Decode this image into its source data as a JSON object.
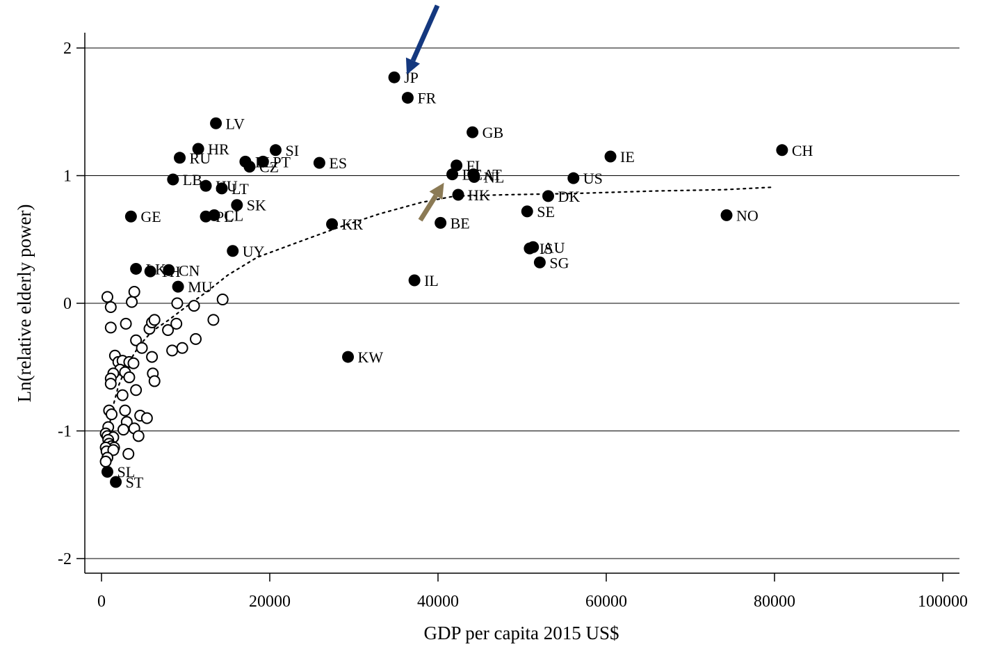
{
  "chart_data": {
    "type": "scatter",
    "xlabel": "GDP per capita 2015 US$",
    "ylabel": "Ln(relative elderly power)",
    "xlim": [
      -1500,
      101500
    ],
    "ylim": [
      -2.1,
      2.1
    ],
    "xticks": [
      0,
      20000,
      40000,
      60000,
      80000,
      100000
    ],
    "yticks": [
      -2,
      -1,
      0,
      1,
      2
    ],
    "grid": "horizontal",
    "colors": {
      "text": "#000000",
      "grid": "#000000",
      "arrow_blue": "#14387f",
      "arrow_tan": "#8b7a55"
    },
    "labeled_points": [
      {
        "label": "JP",
        "x": 34800,
        "y": 1.77
      },
      {
        "label": "FR",
        "x": 36400,
        "y": 1.61
      },
      {
        "label": "GB",
        "x": 44100,
        "y": 1.34
      },
      {
        "label": "CH",
        "x": 80900,
        "y": 1.2
      },
      {
        "label": "IE",
        "x": 60500,
        "y": 1.15
      },
      {
        "label": "LV",
        "x": 13600,
        "y": 1.41
      },
      {
        "label": "HR",
        "x": 11500,
        "y": 1.21
      },
      {
        "label": "RU",
        "x": 9300,
        "y": 1.14
      },
      {
        "label": "SI",
        "x": 20700,
        "y": 1.2
      },
      {
        "label": "PT",
        "x": 19200,
        "y": 1.11
      },
      {
        "label": "EL",
        "x": 17100,
        "y": 1.11
      },
      {
        "label": "CZ",
        "x": 17600,
        "y": 1.07
      },
      {
        "label": "ES",
        "x": 25900,
        "y": 1.1
      },
      {
        "label": "FI",
        "x": 42200,
        "y": 1.08
      },
      {
        "label": "DE",
        "x": 41700,
        "y": 1.01
      },
      {
        "label": "AT",
        "x": 44200,
        "y": 1.01
      },
      {
        "label": "NL",
        "x": 44300,
        "y": 0.99
      },
      {
        "label": "US",
        "x": 56100,
        "y": 0.98
      },
      {
        "label": "LB",
        "x": 8500,
        "y": 0.97
      },
      {
        "label": "HU",
        "x": 12400,
        "y": 0.92
      },
      {
        "label": "LT",
        "x": 14300,
        "y": 0.9
      },
      {
        "label": "HK",
        "x": 42400,
        "y": 0.85
      },
      {
        "label": "DK",
        "x": 53100,
        "y": 0.84
      },
      {
        "label": "SK",
        "x": 16100,
        "y": 0.77
      },
      {
        "label": "SE",
        "x": 50600,
        "y": 0.72
      },
      {
        "label": "NO",
        "x": 74300,
        "y": 0.69
      },
      {
        "label": "GE",
        "x": 3500,
        "y": 0.68
      },
      {
        "label": "PL",
        "x": 12400,
        "y": 0.68
      },
      {
        "label": "CL",
        "x": 13400,
        "y": 0.69
      },
      {
        "label": "BE",
        "x": 40300,
        "y": 0.63
      },
      {
        "label": "KR",
        "x": 27400,
        "y": 0.62
      },
      {
        "label": "UY",
        "x": 15600,
        "y": 0.41
      },
      {
        "label": "AU",
        "x": 51300,
        "y": 0.44
      },
      {
        "label": "IS",
        "x": 50900,
        "y": 0.43
      },
      {
        "label": "SG",
        "x": 52100,
        "y": 0.32
      },
      {
        "label": "TH",
        "x": 5800,
        "y": 0.25
      },
      {
        "label": "CN",
        "x": 8000,
        "y": 0.26
      },
      {
        "label": "LK",
        "x": 4100,
        "y": 0.27
      },
      {
        "label": "IL",
        "x": 37200,
        "y": 0.18
      },
      {
        "label": "MU",
        "x": 9100,
        "y": 0.13
      },
      {
        "label": "KW",
        "x": 29300,
        "y": -0.42
      },
      {
        "label": "SL",
        "x": 700,
        "y": -1.32
      },
      {
        "label": "ST",
        "x": 1700,
        "y": -1.4
      }
    ],
    "unlabeled_points": [
      {
        "x": 700,
        "y": 0.05
      },
      {
        "x": 1100,
        "y": -0.03
      },
      {
        "x": 1100,
        "y": -0.19
      },
      {
        "x": 3600,
        "y": 0.01
      },
      {
        "x": 3900,
        "y": 0.09
      },
      {
        "x": 2900,
        "y": -0.16
      },
      {
        "x": 4100,
        "y": -0.29
      },
      {
        "x": 4800,
        "y": -0.35
      },
      {
        "x": 5700,
        "y": -0.2
      },
      {
        "x": 6000,
        "y": -0.15
      },
      {
        "x": 6300,
        "y": -0.13
      },
      {
        "x": 7900,
        "y": -0.21
      },
      {
        "x": 9000,
        "y": 0.0
      },
      {
        "x": 8900,
        "y": -0.16
      },
      {
        "x": 11000,
        "y": -0.02
      },
      {
        "x": 14400,
        "y": 0.03
      },
      {
        "x": 13300,
        "y": -0.13
      },
      {
        "x": 11200,
        "y": -0.28
      },
      {
        "x": 9600,
        "y": -0.35
      },
      {
        "x": 8400,
        "y": -0.37
      },
      {
        "x": 6000,
        "y": -0.42
      },
      {
        "x": 1600,
        "y": -0.41
      },
      {
        "x": 2000,
        "y": -0.46
      },
      {
        "x": 2500,
        "y": -0.45
      },
      {
        "x": 3300,
        "y": -0.46
      },
      {
        "x": 3800,
        "y": -0.47
      },
      {
        "x": 2200,
        "y": -0.52
      },
      {
        "x": 2800,
        "y": -0.54
      },
      {
        "x": 1400,
        "y": -0.55
      },
      {
        "x": 3300,
        "y": -0.58
      },
      {
        "x": 1100,
        "y": -0.59
      },
      {
        "x": 1100,
        "y": -0.63
      },
      {
        "x": 6100,
        "y": -0.55
      },
      {
        "x": 6300,
        "y": -0.61
      },
      {
        "x": 4100,
        "y": -0.68
      },
      {
        "x": 2500,
        "y": -0.72
      },
      {
        "x": 900,
        "y": -0.84
      },
      {
        "x": 1200,
        "y": -0.87
      },
      {
        "x": 2800,
        "y": -0.84
      },
      {
        "x": 4600,
        "y": -0.88
      },
      {
        "x": 5400,
        "y": -0.9
      },
      {
        "x": 3000,
        "y": -0.93
      },
      {
        "x": 800,
        "y": -0.97
      },
      {
        "x": 2600,
        "y": -0.99
      },
      {
        "x": 3900,
        "y": -0.98
      },
      {
        "x": 4400,
        "y": -1.04
      },
      {
        "x": 500,
        "y": -1.02
      },
      {
        "x": 700,
        "y": -1.04
      },
      {
        "x": 1400,
        "y": -1.05
      },
      {
        "x": 800,
        "y": -1.07
      },
      {
        "x": 900,
        "y": -1.1
      },
      {
        "x": 1200,
        "y": -1.12
      },
      {
        "x": 1500,
        "y": -1.13
      },
      {
        "x": 500,
        "y": -1.13
      },
      {
        "x": 600,
        "y": -1.16
      },
      {
        "x": 1400,
        "y": -1.15
      },
      {
        "x": 3200,
        "y": -1.18
      },
      {
        "x": 700,
        "y": -1.21
      },
      {
        "x": 500,
        "y": -1.24
      }
    ],
    "fit_line": [
      {
        "x": 600,
        "y": -1.12
      },
      {
        "x": 1200,
        "y": -0.85
      },
      {
        "x": 2000,
        "y": -0.65
      },
      {
        "x": 3000,
        "y": -0.49
      },
      {
        "x": 4500,
        "y": -0.33
      },
      {
        "x": 6000,
        "y": -0.22
      },
      {
        "x": 8000,
        "y": -0.13
      },
      {
        "x": 10000,
        "y": -0.03
      },
      {
        "x": 12500,
        "y": 0.09
      },
      {
        "x": 15000,
        "y": 0.22
      },
      {
        "x": 18500,
        "y": 0.36
      },
      {
        "x": 23000,
        "y": 0.47
      },
      {
        "x": 28000,
        "y": 0.59
      },
      {
        "x": 33000,
        "y": 0.7
      },
      {
        "x": 38000,
        "y": 0.79
      },
      {
        "x": 42000,
        "y": 0.84
      },
      {
        "x": 48000,
        "y": 0.85
      },
      {
        "x": 56000,
        "y": 0.86
      },
      {
        "x": 66000,
        "y": 0.88
      },
      {
        "x": 74000,
        "y": 0.89
      },
      {
        "x": 80000,
        "y": 0.91
      }
    ],
    "annotations": [
      {
        "type": "arrow",
        "color": "arrow_blue",
        "target": "JP"
      },
      {
        "type": "arrow",
        "color": "arrow_tan",
        "target": "DE"
      }
    ]
  }
}
